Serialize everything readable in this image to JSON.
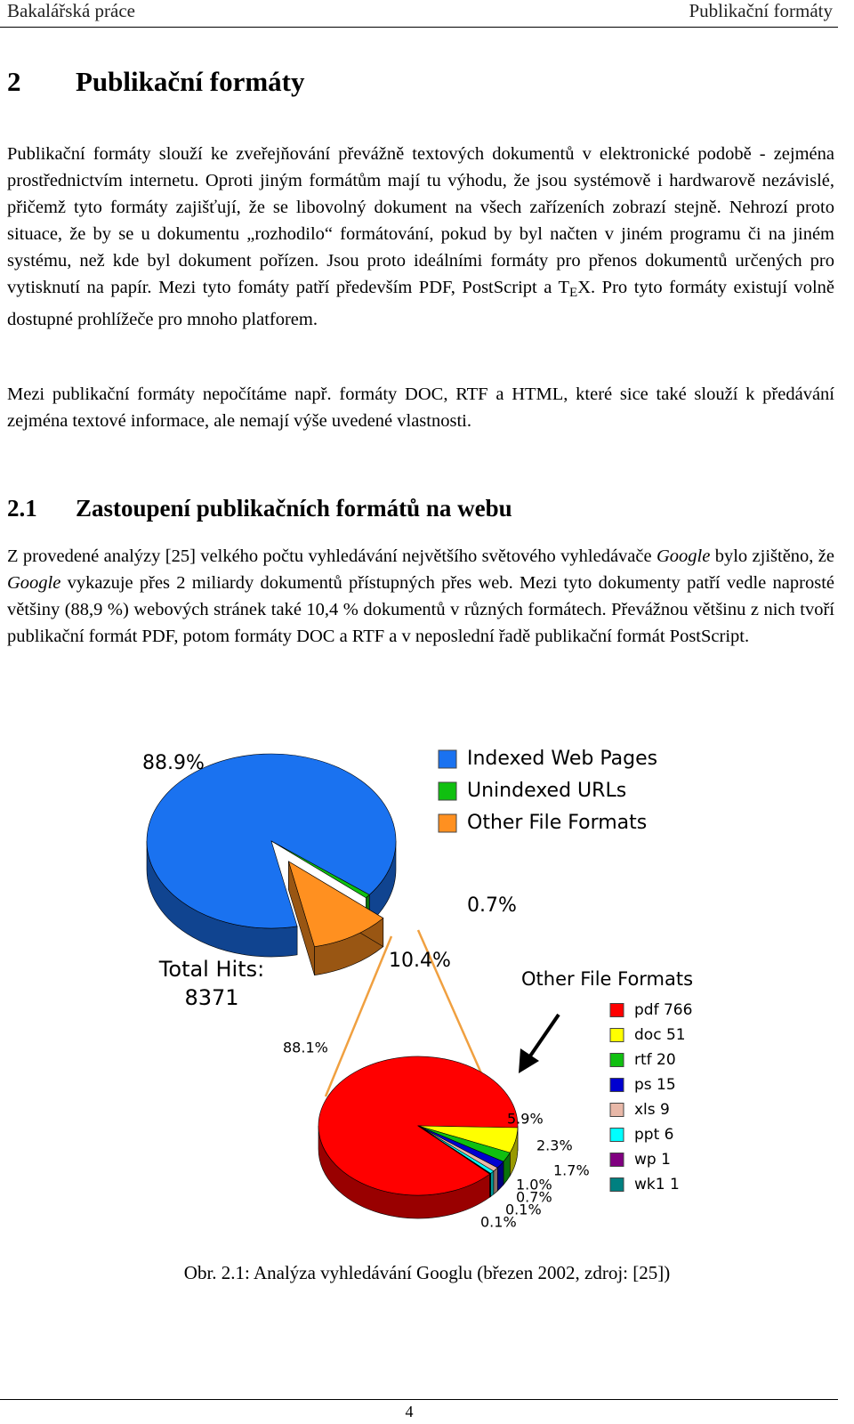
{
  "header": {
    "left": "Bakalářská práce",
    "right": "Publikační formáty"
  },
  "sections": [
    {
      "number": "2",
      "title": "Publikační formáty",
      "paragraphs": [
        {
          "parts": [
            "Publikační formáty slouží ke zveřejňování převážně textových dokumentů v elektronické podobě - zejména prostřednictvím internetu. Oproti jiným formátům mají tu výhodu, že jsou systémově i hardwarově nezávislé, přičemž tyto formáty zajišťují, že se libovolný dokument na všech zařízeních zobrazí stejně. Nehrozí proto situace, že by se u dokumentu „rozhodilo“ formátování, pokud by byl načten v jiném programu či na jiném systému, než kde byl dokument pořízen. Jsou proto ideálními formáty pro přenos dokumentů určených pro vytisknutí na papír. Mezi tyto fomáty patří především PDF, PostScript a T",
            "E",
            "X. Pro tyto formáty existují volně dostupné prohlížeče pro mnoho platforem."
          ]
        },
        {
          "parts": [
            "Mezi publikační formáty nepočítáme např. formáty DOC, RTF a HTML, které sice také slouží k předávání zejména textové informace, ale nemají výše uvedené vlastnosti."
          ]
        }
      ]
    },
    {
      "number": "2.1",
      "title": "Zastoupení publikačních formátů na webu",
      "paragraphs": [
        {
          "parts": [
            "Z provedené analýzy [25] velkého počtu vyhledávání největšího světového vyhledávače ",
            "Google",
            " bylo zjištěno, že ",
            "Google",
            " vykazuje přes 2 miliardy dokumentů přístupných přes web. Mezi tyto dokumenty patří vedle naprosté většiny (88,9 %) webových stránek také 10,4 % dokumentů v různých formátech. Převážnou většinu z nich tvoří publikační formát PDF, potom formáty DOC a RTF a v neposlední řadě publikační formát PostScript."
          ]
        }
      ]
    }
  ],
  "figure": {
    "caption": "Obr. 2.1: Analýza vyhledávání Googlu (březen 2002, zdroj: [25])"
  },
  "chart_data": [
    {
      "type": "pie",
      "categories": [
        "Indexed Web Pages",
        "Unindexed URLs",
        "Other File Formats"
      ],
      "values": [
        88.9,
        0.7,
        10.4
      ],
      "value_labels": [
        "88.9%",
        "0.7%",
        "10.4%"
      ],
      "colors": [
        "#1a72f0",
        "#10c010",
        "#ff9020"
      ],
      "annotations": [
        "Total Hits:",
        "8371"
      ]
    },
    {
      "type": "pie",
      "title": "Other File Formats",
      "categories": [
        "pdf 766",
        "doc 51",
        "rtf 20",
        "ps 15",
        "xls 9",
        "ppt 6",
        "wp 1",
        "wk1 1"
      ],
      "values": [
        88.1,
        5.9,
        2.3,
        1.7,
        1.0,
        0.7,
        0.1,
        0.1
      ],
      "value_labels": [
        "88.1%",
        "5.9%",
        "2.3%",
        "1.7%",
        "1.0%",
        "0.7%",
        "0.1%",
        "0.1%"
      ],
      "colors": [
        "#ff0000",
        "#ffff00",
        "#10c010",
        "#0000d0",
        "#e8b8a8",
        "#00ffff",
        "#800080",
        "#008080"
      ]
    }
  ],
  "footer": {
    "page": "4"
  }
}
